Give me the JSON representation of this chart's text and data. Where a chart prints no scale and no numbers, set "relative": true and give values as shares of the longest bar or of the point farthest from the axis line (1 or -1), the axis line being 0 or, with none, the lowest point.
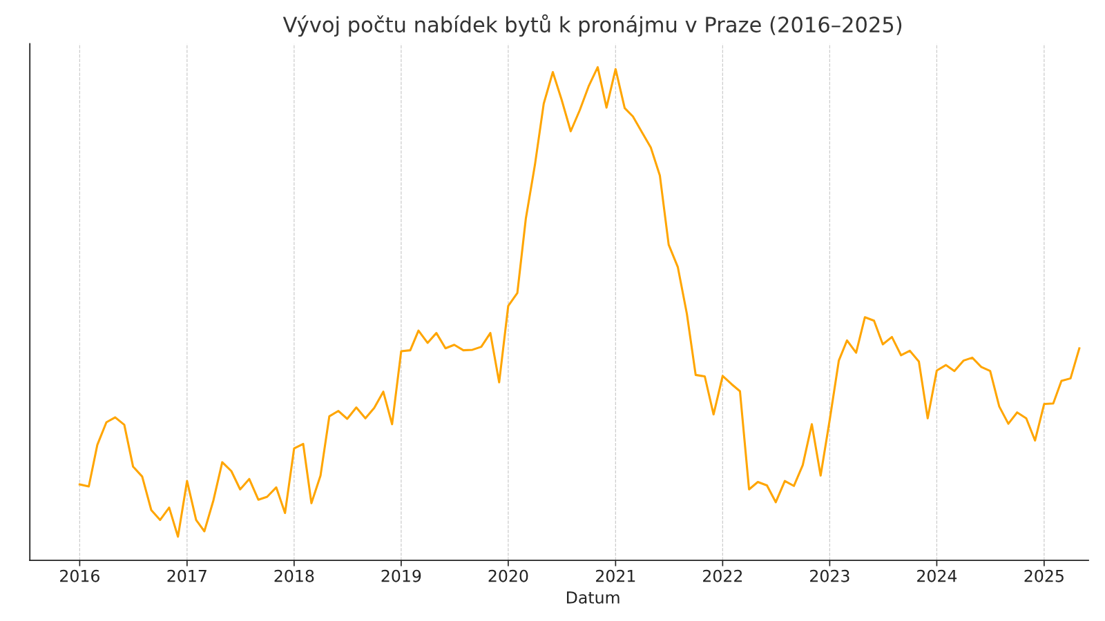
{
  "chart_data": {
    "type": "line",
    "title": "Vývoj počtu nabídek bytů k pronájmu v Praze (2016–2025)",
    "xlabel": "Datum",
    "relative": true,
    "grid": "x",
    "line_style": "solid",
    "xlim": [
      "2015-07-15",
      "2025-06-01"
    ],
    "xticks": [
      "2016",
      "2017",
      "2018",
      "2019",
      "2020",
      "2021",
      "2022",
      "2023",
      "2024",
      "2025"
    ],
    "x": [
      "2016-01",
      "2016-02",
      "2016-03",
      "2016-04",
      "2016-05",
      "2016-06",
      "2016-07",
      "2016-08",
      "2016-09",
      "2016-10",
      "2016-11",
      "2016-12",
      "2017-01",
      "2017-02",
      "2017-03",
      "2017-04",
      "2017-05",
      "2017-06",
      "2017-07",
      "2017-08",
      "2017-09",
      "2017-10",
      "2017-11",
      "2017-12",
      "2018-01",
      "2018-02",
      "2018-03",
      "2018-04",
      "2018-05",
      "2018-06",
      "2018-07",
      "2018-08",
      "2018-09",
      "2018-10",
      "2018-11",
      "2018-12",
      "2019-01",
      "2019-02",
      "2019-03",
      "2019-04",
      "2019-05",
      "2019-06",
      "2019-07",
      "2019-08",
      "2019-09",
      "2019-10",
      "2019-11",
      "2019-12",
      "2020-01",
      "2020-02",
      "2020-03",
      "2020-04",
      "2020-05",
      "2020-06",
      "2020-07",
      "2020-08",
      "2020-09",
      "2020-10",
      "2020-11",
      "2020-12",
      "2021-01",
      "2021-02",
      "2021-03",
      "2021-04",
      "2021-05",
      "2021-06",
      "2021-07",
      "2021-08",
      "2021-09",
      "2021-10",
      "2021-11",
      "2021-12",
      "2022-01",
      "2022-02",
      "2022-03",
      "2022-04",
      "2022-05",
      "2022-06",
      "2022-07",
      "2022-08",
      "2022-09",
      "2022-10",
      "2022-11",
      "2022-12",
      "2023-01",
      "2023-02",
      "2023-03",
      "2023-04",
      "2023-05",
      "2023-06",
      "2023-07",
      "2023-08",
      "2023-09",
      "2023-10",
      "2023-11",
      "2023-12",
      "2024-01",
      "2024-02",
      "2024-03",
      "2024-04",
      "2024-05",
      "2024-06",
      "2024-07",
      "2024-08",
      "2024-09",
      "2024-10",
      "2024-11",
      "2024-12",
      "2025-01",
      "2025-02",
      "2025-03",
      "2025-04",
      "2025-05"
    ],
    "series": [
      {
        "color": "#ffa500",
        "values": [
          0.154,
          0.15,
          0.234,
          0.28,
          0.29,
          0.275,
          0.19,
          0.17,
          0.102,
          0.082,
          0.107,
          0.048,
          0.161,
          0.082,
          0.059,
          0.122,
          0.199,
          0.181,
          0.144,
          0.165,
          0.123,
          0.129,
          0.148,
          0.096,
          0.227,
          0.236,
          0.116,
          0.172,
          0.292,
          0.303,
          0.287,
          0.31,
          0.288,
          0.309,
          0.342,
          0.276,
          0.424,
          0.426,
          0.466,
          0.441,
          0.461,
          0.43,
          0.437,
          0.426,
          0.427,
          0.433,
          0.461,
          0.361,
          0.516,
          0.542,
          0.693,
          0.802,
          0.926,
          0.99,
          0.934,
          0.87,
          0.913,
          0.961,
          1.0,
          0.918,
          0.996,
          0.917,
          0.9,
          0.868,
          0.837,
          0.78,
          0.64,
          0.595,
          0.5,
          0.376,
          0.373,
          0.296,
          0.374,
          0.357,
          0.343,
          0.144,
          0.159,
          0.152,
          0.118,
          0.161,
          0.151,
          0.193,
          0.276,
          0.172,
          0.285,
          0.405,
          0.446,
          0.421,
          0.493,
          0.486,
          0.438,
          0.453,
          0.416,
          0.425,
          0.403,
          0.288,
          0.385,
          0.396,
          0.384,
          0.405,
          0.411,
          0.392,
          0.384,
          0.312,
          0.277,
          0.3,
          0.288,
          0.243,
          0.317,
          0.318,
          0.364,
          0.369,
          0.43
        ]
      }
    ]
  }
}
